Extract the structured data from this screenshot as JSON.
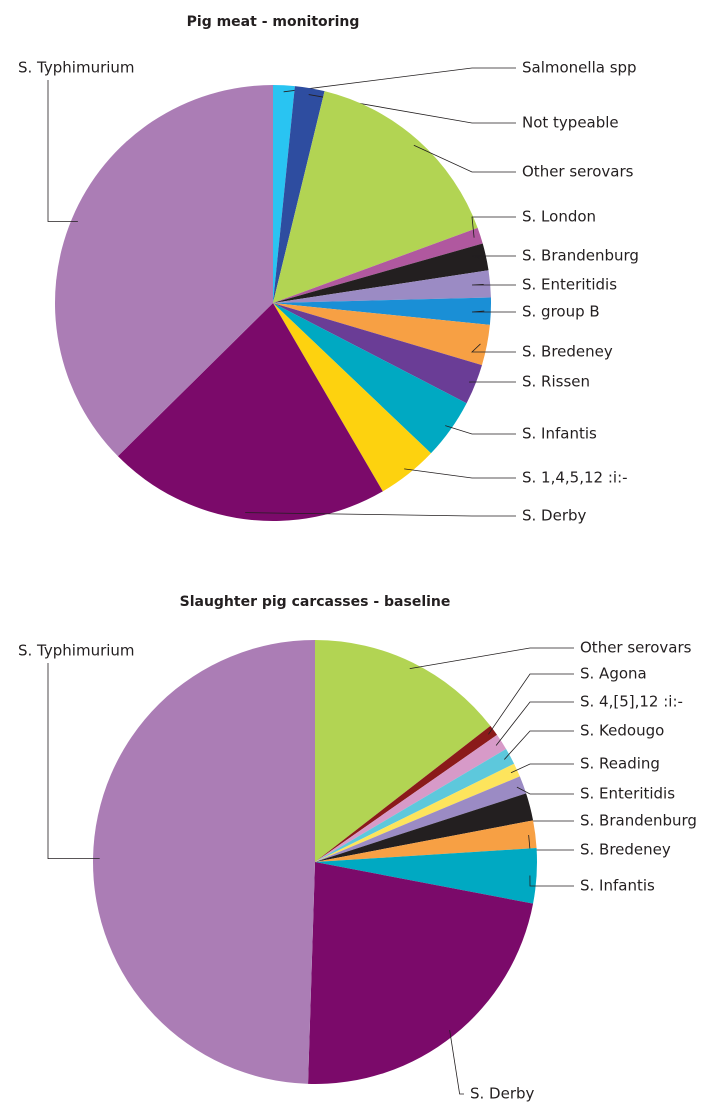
{
  "chart_data": [
    {
      "type": "pie",
      "title": "Pig meat - monitoring",
      "categories": [
        "Salmonella spp",
        "Not typeable",
        "Other serovars",
        "S. London",
        "S. Brandenburg",
        "S. Enteritidis",
        "S. group B",
        "S. Bredeney",
        "S. Rissen",
        "S. Infantis",
        "S. 1,4,5,12 :i:-",
        "S. Derby",
        "S. Typhimurium"
      ],
      "values": [
        1.6,
        2.2,
        15.6,
        1.2,
        2,
        2,
        2,
        3,
        3,
        4.5,
        4.5,
        21,
        37.4
      ],
      "colors": [
        "#29c4f2",
        "#2e4da0",
        "#b2d453",
        "#b0589f",
        "#231f20",
        "#9b8bc4",
        "#1a8fd6",
        "#f7a044",
        "#6a3d96",
        "#00a9c2",
        "#fdd20f",
        "#7b0a6a",
        "#ab7db5"
      ]
    },
    {
      "type": "pie",
      "title": "Slaughter pig carcasses - baseline",
      "categories": [
        "Other serovars",
        "S. Agona",
        "S. 4,[5],12 :i:-",
        "S. Kedougo",
        "S. Reading",
        "S. Enteritidis",
        "S. Brandenburg",
        "S. Bredeney",
        "S. Infantis",
        "S. Derby",
        "S. Typhimurium"
      ],
      "values": [
        14.5,
        0.8,
        1.2,
        1.2,
        1.0,
        1.3,
        2,
        2,
        4,
        22.5,
        49.5
      ],
      "colors": [
        "#b2d453",
        "#8b1a1a",
        "#d79ac8",
        "#5dc8dc",
        "#fde45c",
        "#9b8bc4",
        "#231f20",
        "#f7a044",
        "#00a9c2",
        "#7b0a6a",
        "#ab7db5"
      ]
    }
  ]
}
